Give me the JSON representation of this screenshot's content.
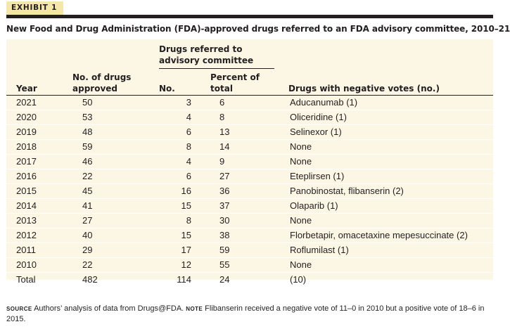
{
  "exhibit": {
    "label": "EXHIBIT 1"
  },
  "title": "New Food and Drug Administration (FDA)-approved drugs referred to an FDA advisory committee, 2010–21",
  "group_header": "Drugs referred to advisory committee",
  "columns": {
    "year": "Year",
    "approved": [
      "No. of drugs",
      "approved"
    ],
    "referred_no": "No.",
    "referred_pct": [
      "Percent of",
      "total"
    ],
    "negative": "Drugs with negative votes (no.)"
  },
  "rows": [
    {
      "year": "2021",
      "approved": "50",
      "referred_no": "3",
      "referred_pct": "6",
      "negative": "Aducanumab (1)"
    },
    {
      "year": "2020",
      "approved": "53",
      "referred_no": "4",
      "referred_pct": "8",
      "negative": "Oliceridine (1)"
    },
    {
      "year": "2019",
      "approved": "48",
      "referred_no": "6",
      "referred_pct": "13",
      "negative": "Selinexor (1)"
    },
    {
      "year": "2018",
      "approved": "59",
      "referred_no": "8",
      "referred_pct": "14",
      "negative": "None"
    },
    {
      "year": "2017",
      "approved": "46",
      "referred_no": "4",
      "referred_pct": "9",
      "negative": "None"
    },
    {
      "year": "2016",
      "approved": "22",
      "referred_no": "6",
      "referred_pct": "27",
      "negative": "Eteplirsen (1)"
    },
    {
      "year": "2015",
      "approved": "45",
      "referred_no": "16",
      "referred_pct": "36",
      "negative": "Panobinostat, flibanserin (2)"
    },
    {
      "year": "2014",
      "approved": "41",
      "referred_no": "15",
      "referred_pct": "37",
      "negative": "Olaparib (1)"
    },
    {
      "year": "2013",
      "approved": "27",
      "referred_no": "8",
      "referred_pct": "30",
      "negative": "None"
    },
    {
      "year": "2012",
      "approved": "40",
      "referred_no": "15",
      "referred_pct": "38",
      "negative": "Florbetapir, omacetaxine mepesuccinate (2)"
    },
    {
      "year": "2011",
      "approved": "29",
      "referred_no": "17",
      "referred_pct": "59",
      "negative": "Roflumilast (1)"
    },
    {
      "year": "2010",
      "approved": "22",
      "referred_no": "12",
      "referred_pct": "55",
      "negative": "None"
    },
    {
      "year": "Total",
      "approved": "482",
      "referred_no": "114",
      "referred_pct": "24",
      "negative": "(10)"
    }
  ],
  "footnote": {
    "source_label": "SOURCE",
    "source_text": "Authors’ analysis of data from Drugs@FDA.",
    "note_label": "NOTE",
    "note_text": "Flibanserin received a negative vote of 11–0 in 2010 but a positive vote of 18–6 in 2015."
  },
  "colors": {
    "label_bg": "#f4e7a8",
    "table_bg": "#fbf7e4",
    "rule": "#231f20"
  }
}
